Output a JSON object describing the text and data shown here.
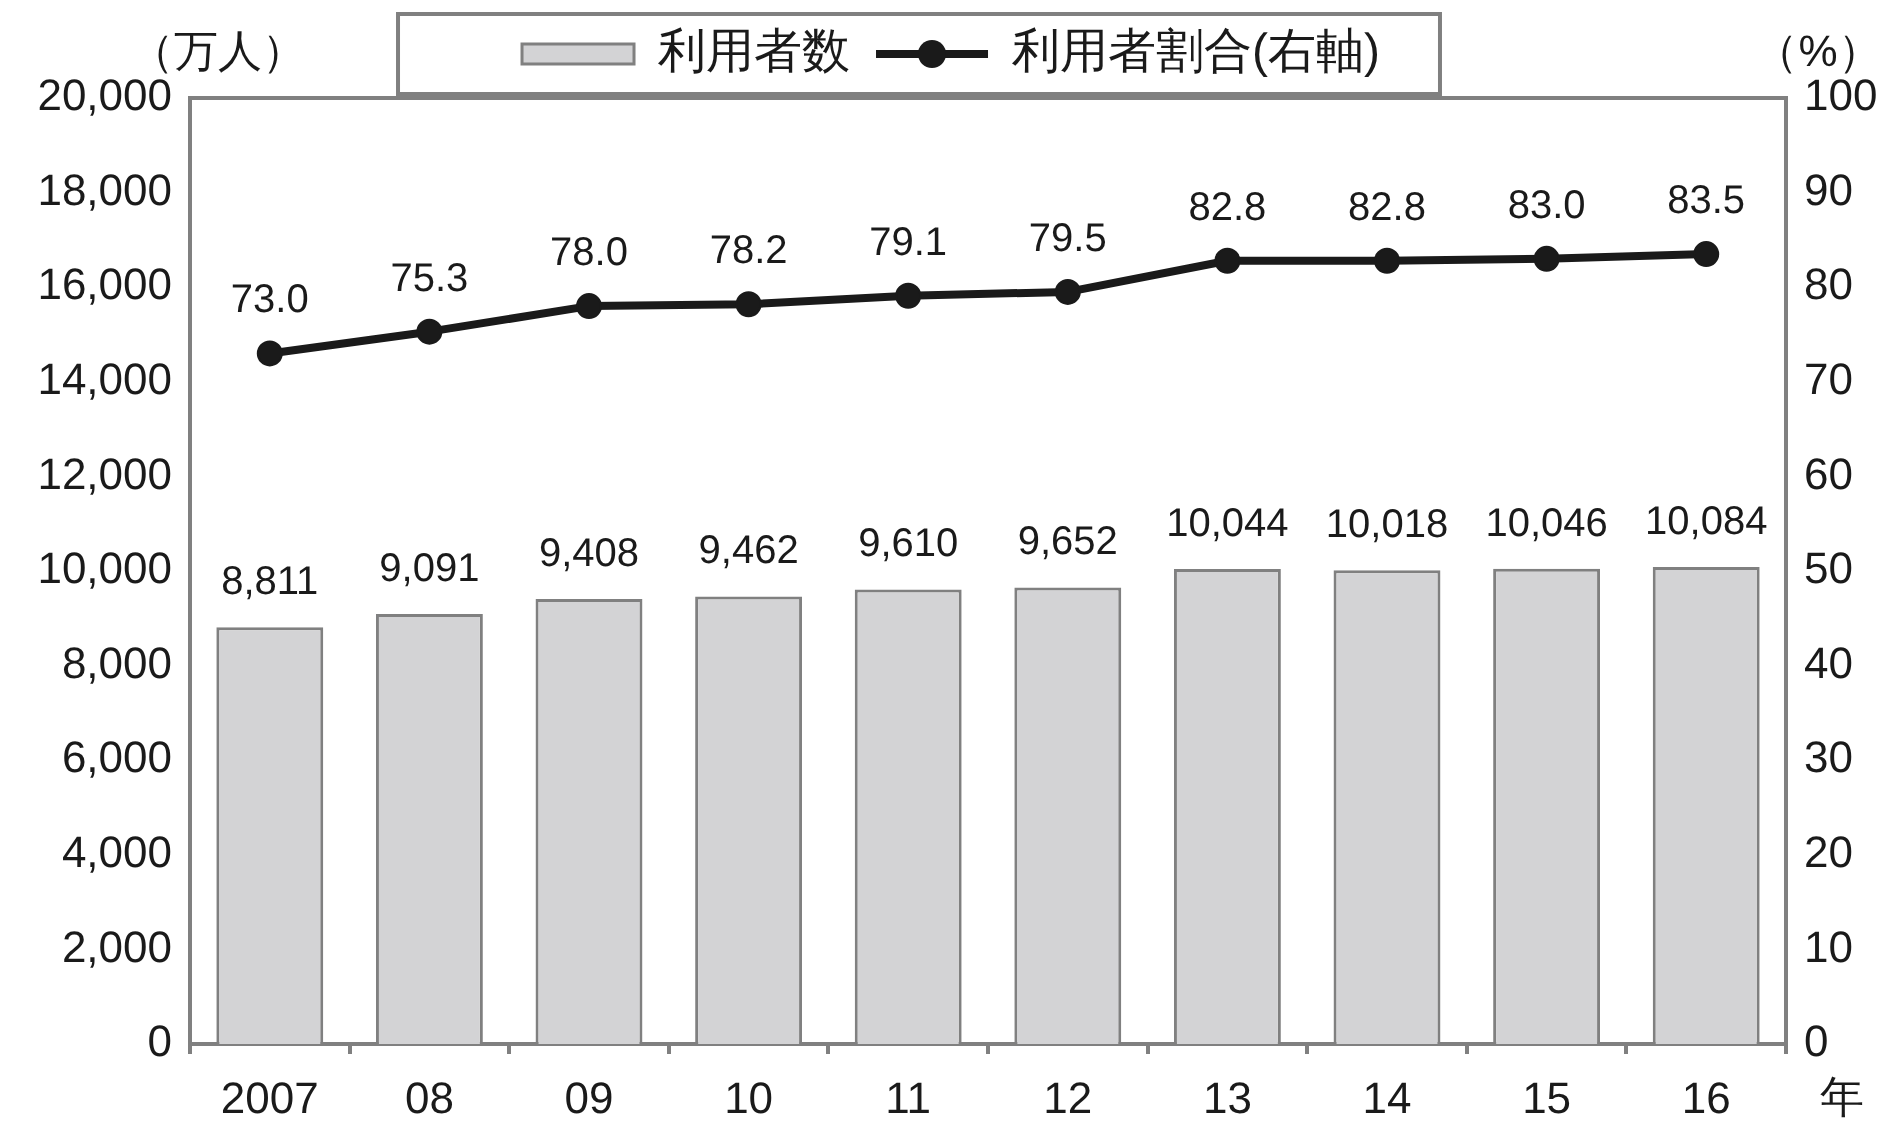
{
  "chart_data": {
    "type": "bar",
    "xlabel": "年",
    "ylabel": "（万人）",
    "y2label": "（%）",
    "categories": [
      "2007",
      "08",
      "09",
      "10",
      "11",
      "12",
      "13",
      "14",
      "15",
      "16"
    ],
    "series": [
      {
        "name": "利用者数",
        "color": "#d3d3d5",
        "values": [
          8811,
          9091,
          9408,
          9462,
          9610,
          9652,
          10044,
          10018,
          10046,
          10084
        ],
        "value_labels": [
          "8,811",
          "9,091",
          "9,408",
          "9,462",
          "9,610",
          "9,652",
          "10,044",
          "10,018",
          "10,046",
          "10,084"
        ]
      },
      {
        "type": "line",
        "name": "利用者割合(右軸)",
        "color": "#1a1a1a",
        "axis": "y2",
        "values": [
          73.0,
          75.3,
          78.0,
          78.2,
          79.1,
          79.5,
          82.8,
          82.8,
          83.0,
          83.5
        ],
        "value_labels": [
          "73.0",
          "75.3",
          "78.0",
          "78.2",
          "79.1",
          "79.5",
          "82.8",
          "82.8",
          "83.0",
          "83.5"
        ]
      }
    ],
    "ylim": [
      0,
      20000
    ],
    "yticks": [
      0,
      {
        "value": 2000,
        "label": "2,000"
      },
      {
        "value": 4000,
        "label": "4,000"
      },
      {
        "value": 6000,
        "label": "6,000"
      },
      {
        "value": 8000,
        "label": "8,000"
      },
      {
        "value": 10000,
        "label": "10,000"
      },
      {
        "value": 12000,
        "label": "12,000"
      },
      {
        "value": 14000,
        "label": "14,000"
      },
      {
        "value": 16000,
        "label": "16,000"
      },
      {
        "value": 18000,
        "label": "18,000"
      },
      {
        "value": 20000,
        "label": "20,000"
      }
    ],
    "y2lim": [
      0,
      100
    ],
    "y2ticks": [
      0,
      10,
      20,
      30,
      40,
      50,
      60,
      70,
      80,
      90,
      100
    ],
    "grid": false,
    "legend": "top",
    "marker": "circle",
    "line_style": "solid"
  }
}
